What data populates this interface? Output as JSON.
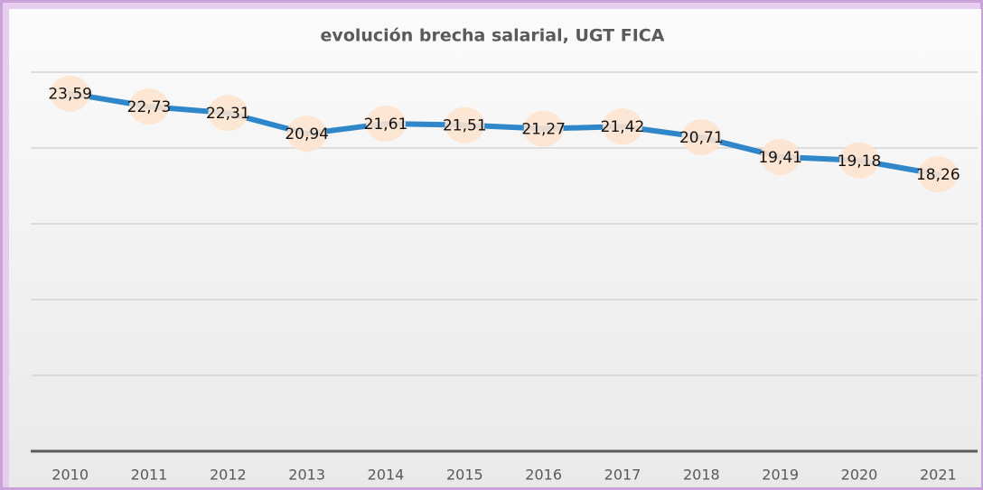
{
  "chart_data": {
    "type": "line",
    "title": "evolución brecha salarial, UGT FICA",
    "categories": [
      "2010",
      "2011",
      "2012",
      "2013",
      "2014",
      "2015",
      "2016",
      "2017",
      "2018",
      "2019",
      "2020",
      "2021"
    ],
    "values": [
      23.59,
      22.73,
      22.31,
      20.94,
      21.61,
      21.51,
      21.27,
      21.42,
      20.71,
      19.41,
      19.18,
      18.26
    ],
    "value_labels": [
      "23,59",
      "22,73",
      "22,31",
      "20,94",
      "21,61",
      "21,51",
      "21,27",
      "21,42",
      "20,71",
      "19,41",
      "19,18",
      "18,26"
    ],
    "color": "#2f86c9",
    "ylim": [
      0,
      25
    ],
    "yticks": [
      0,
      5,
      10,
      15,
      20,
      25
    ],
    "grid": true
  }
}
